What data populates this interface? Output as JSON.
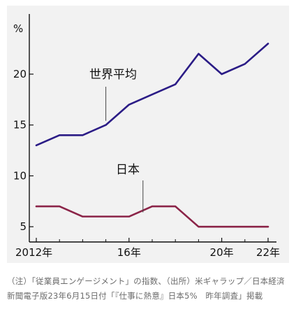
{
  "chart_data": {
    "type": "line",
    "ylabel": "%",
    "ylim": [
      3.5,
      25.5
    ],
    "yticks": [
      "5",
      "10",
      "15",
      "20"
    ],
    "xticks": [
      "2012年",
      "16年",
      "20年",
      "22年"
    ],
    "x": [
      2012,
      2013,
      2014,
      2015,
      2016,
      2017,
      2018,
      2019,
      2020,
      2021,
      2022
    ],
    "xlim": [
      2012,
      2022
    ],
    "series": [
      {
        "name": "世界平均",
        "color": "#2b1c86",
        "values": [
          13,
          14,
          14,
          15,
          17,
          18,
          19,
          22,
          20,
          21,
          23
        ]
      },
      {
        "name": "日本",
        "color": "#8b2448",
        "values": [
          7,
          7,
          6,
          6,
          6,
          7,
          7,
          5,
          5,
          5,
          5
        ]
      }
    ],
    "grid": false
  },
  "caption": "（注）「従業員エンゲージメント」の指数、（出所）米ギャラップ／日本経済新聞電子版23年6月15日付「『仕事に熱意』日本5%　昨年調査」掲載"
}
